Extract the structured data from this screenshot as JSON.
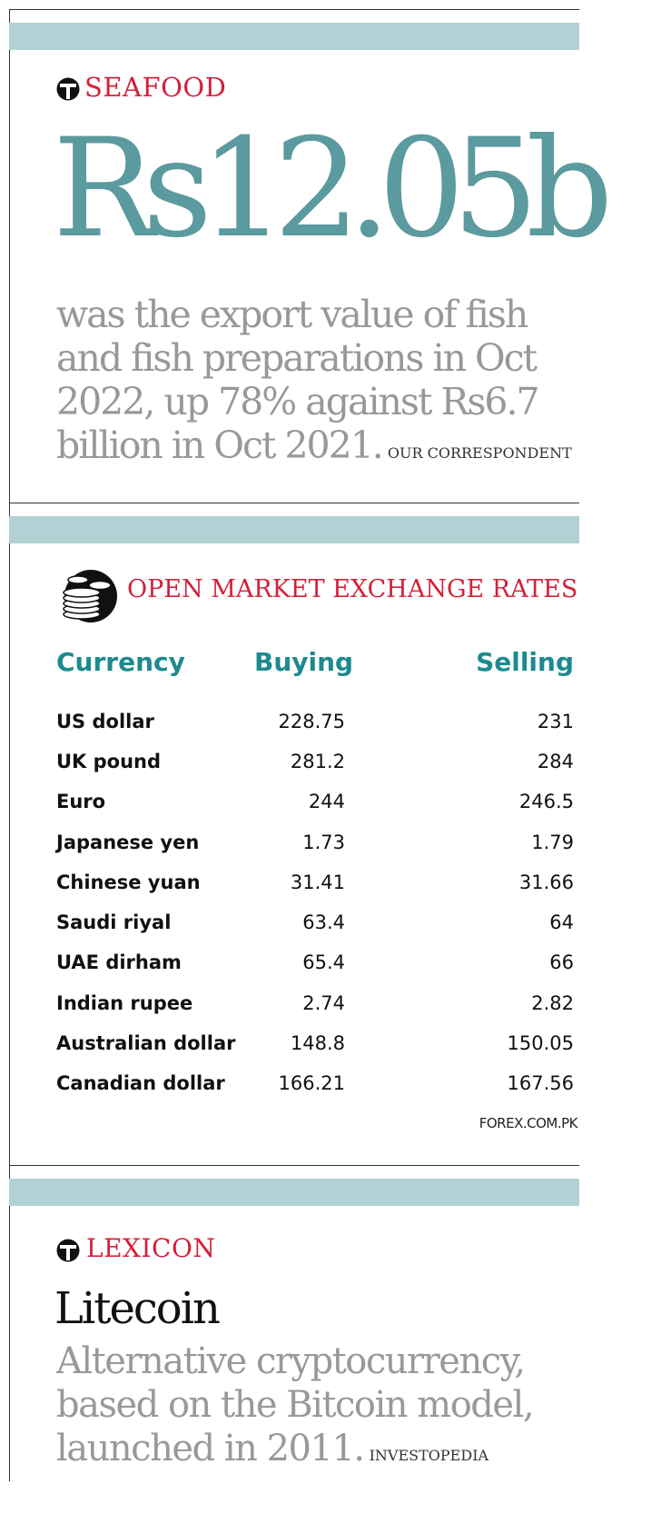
{
  "seafood": {
    "kicker": "SEAFOOD",
    "figure": "Rs12.05b",
    "description": "was the export value of fish and fish preparations in Oct 2022, up 78% against Rs6.7 billion in Oct 2021.",
    "credit": "OUR CORRESPONDENT"
  },
  "exchange": {
    "kicker": "OPEN MARKET EXCHANGE RATES",
    "headers": {
      "currency": "Currency",
      "buying": "Buying",
      "selling": "Selling"
    },
    "rows": [
      {
        "currency": "US dollar",
        "buying": "228.75",
        "selling": "231"
      },
      {
        "currency": "UK pound",
        "buying": "281.2",
        "selling": "284"
      },
      {
        "currency": "Euro",
        "buying": "244",
        "selling": "246.5"
      },
      {
        "currency": "Japanese yen",
        "buying": "1.73",
        "selling": "1.79"
      },
      {
        "currency": "Chinese yuan",
        "buying": "31.41",
        "selling": "31.66"
      },
      {
        "currency": "Saudi riyal",
        "buying": "63.4",
        "selling": "64"
      },
      {
        "currency": "UAE dirham",
        "buying": "65.4",
        "selling": "66"
      },
      {
        "currency": "Indian rupee",
        "buying": "2.74",
        "selling": "2.82"
      },
      {
        "currency": "Australian dollar",
        "buying": "148.8",
        "selling": "150.05"
      },
      {
        "currency": "Canadian dollar",
        "buying": "166.21",
        "selling": "167.56"
      }
    ],
    "source": "FOREX.COM.PK"
  },
  "lexicon": {
    "kicker": "LEXICON",
    "term": "Litecoin",
    "definition": "Alternative cryptocurrency, based on the Bitcoin model, launched in 2011.",
    "credit": "INVESTOPEDIA"
  },
  "colors": {
    "accent_red": "#d4203a",
    "teal": "#1d8a8f",
    "figure_teal": "#5b9a9e",
    "band": "#b2d1d4",
    "grey_text": "#989898"
  },
  "icons": {
    "section_logo": "tribune-t-icon",
    "exchange_logo": "coin-stack-icon"
  }
}
